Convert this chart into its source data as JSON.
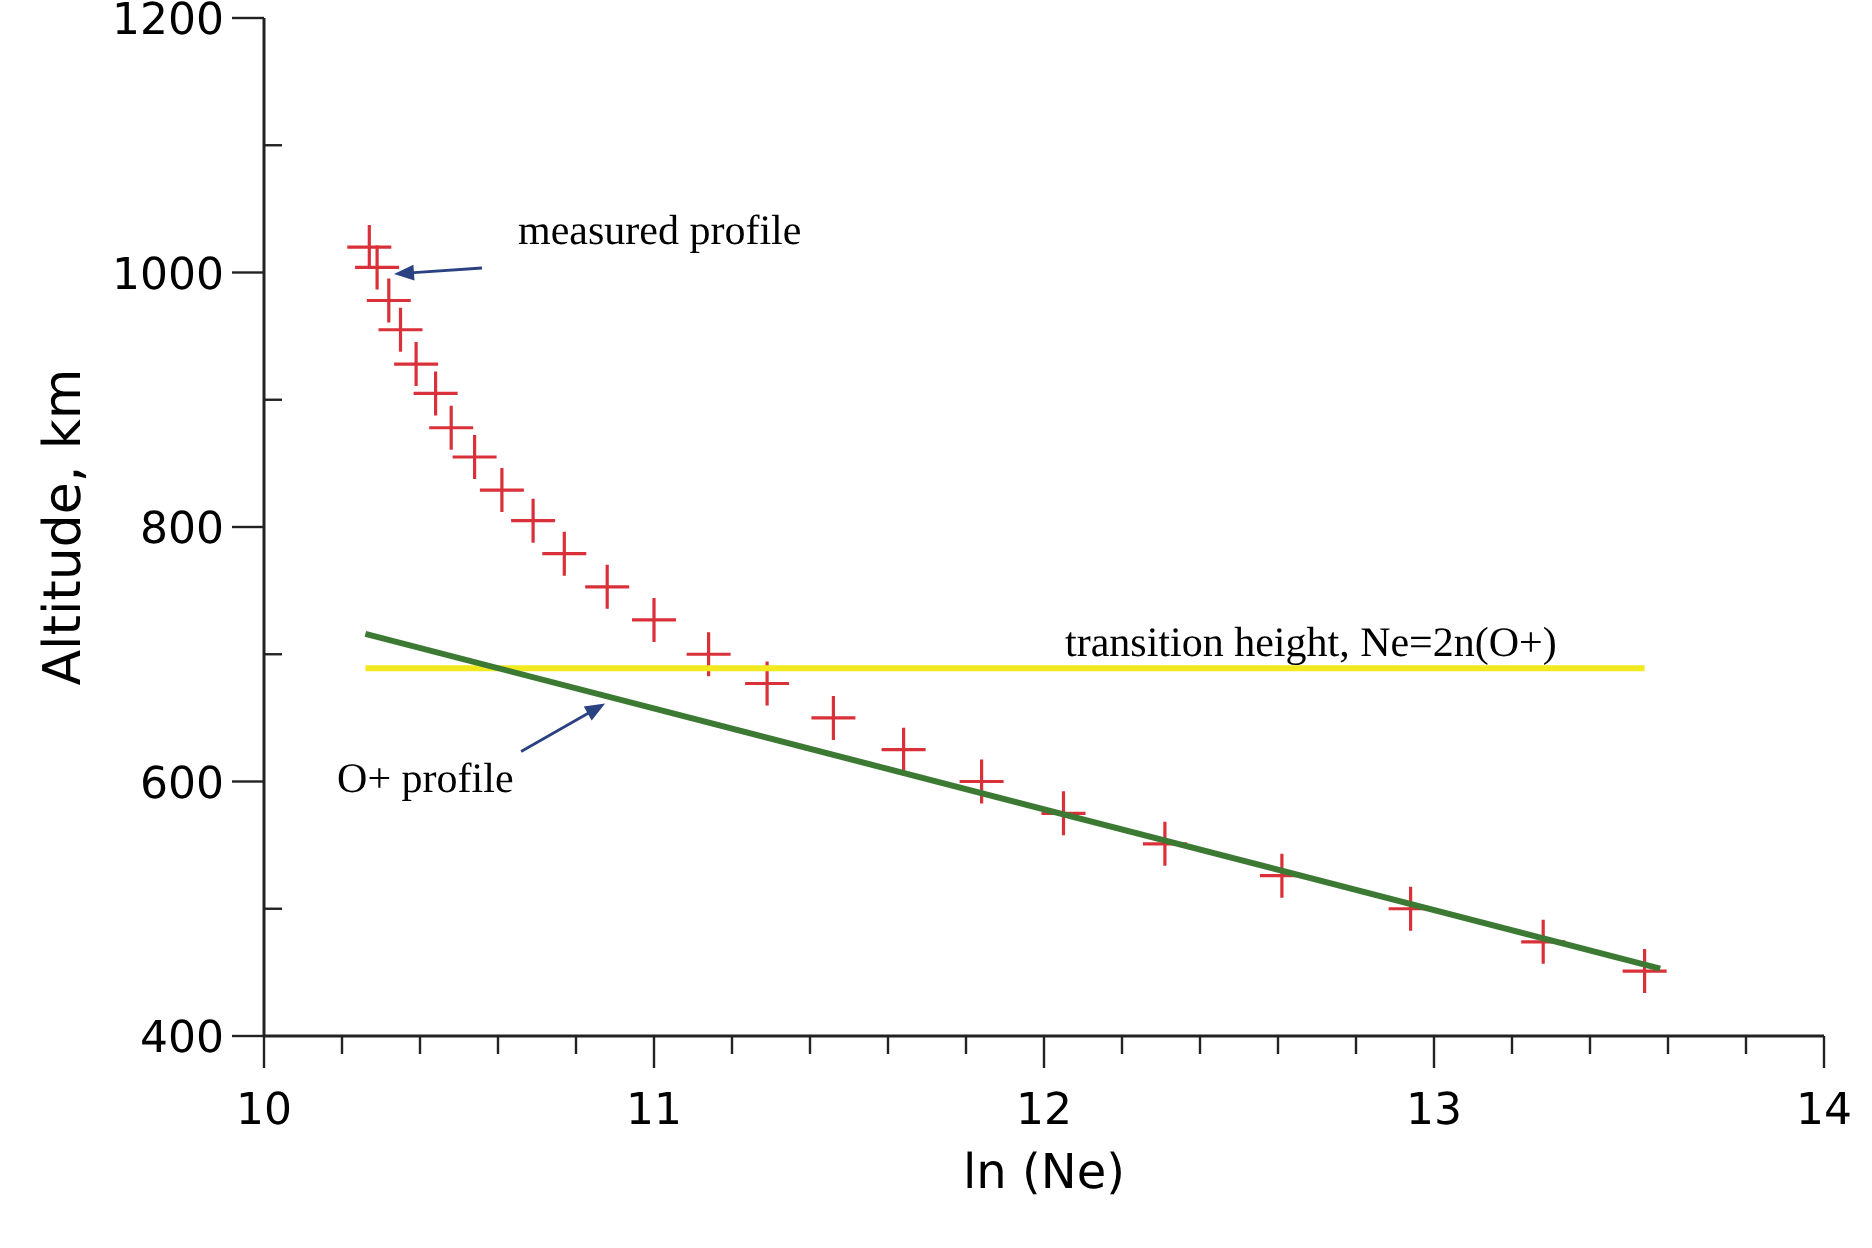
{
  "chart_data": {
    "type": "scatter",
    "xlabel": "ln (Ne)",
    "ylabel": "Altitude, km",
    "xlim": [
      10,
      14
    ],
    "ylim": [
      400,
      1200
    ],
    "xticks": [
      10,
      {
        "value": 10.2,
        "label": null
      },
      {
        "value": 10.4,
        "label": null
      },
      {
        "value": 10.6,
        "label": null
      },
      {
        "value": 10.8,
        "label": null
      },
      11,
      {
        "value": 11.2,
        "label": null
      },
      {
        "value": 11.4,
        "label": null
      },
      {
        "value": 11.6,
        "label": null
      },
      {
        "value": 11.8,
        "label": null
      },
      12,
      {
        "value": 12.2,
        "label": null
      },
      {
        "value": 12.4,
        "label": null
      },
      {
        "value": 12.6,
        "label": null
      },
      {
        "value": 12.8,
        "label": null
      },
      13,
      {
        "value": 13.2,
        "label": null
      },
      {
        "value": 13.4,
        "label": null
      },
      {
        "value": 13.6,
        "label": null
      },
      {
        "value": 13.8,
        "label": null
      },
      14
    ],
    "yticks": [
      400,
      {
        "value": 500,
        "label": null
      },
      600,
      {
        "value": 700,
        "label": null
      },
      800,
      {
        "value": 900,
        "label": null
      },
      1000,
      {
        "value": 1100,
        "label": null
      },
      1200
    ],
    "grid": false,
    "series": [
      {
        "type": "scatter",
        "color": "#d9303a",
        "marker": "cross",
        "x": [
          10.27,
          10.29,
          10.32,
          10.35,
          10.39,
          10.44,
          10.48,
          10.54,
          10.61,
          10.69,
          10.77,
          10.88,
          11.0,
          11.14,
          11.29,
          11.46,
          11.64,
          11.84,
          12.05,
          12.31,
          12.61,
          12.94,
          13.28,
          13.54
        ],
        "values": [
          1020,
          1004,
          978,
          955,
          928,
          905,
          878,
          855,
          829,
          805,
          779,
          753,
          727,
          700,
          677,
          650,
          625,
          600,
          575,
          551,
          526,
          500,
          474,
          451
        ]
      },
      {
        "type": "line",
        "color": "#f2ea1f",
        "line_style": "solid",
        "x": [
          10.26,
          13.54
        ],
        "values": [
          689,
          689
        ]
      },
      {
        "type": "line",
        "color": "#3c7a34",
        "line_style": "solid",
        "x": [
          10.26,
          13.58
        ],
        "values": [
          716,
          453
        ]
      }
    ],
    "annotations": [
      "measured profile",
      {
        "text": "O+ profile",
        "x": 10.89,
        "y": 666
      },
      {
        "text": "transition height,  Ne=2n(O+)",
        "x": 11.9,
        "y": 689
      }
    ]
  }
}
